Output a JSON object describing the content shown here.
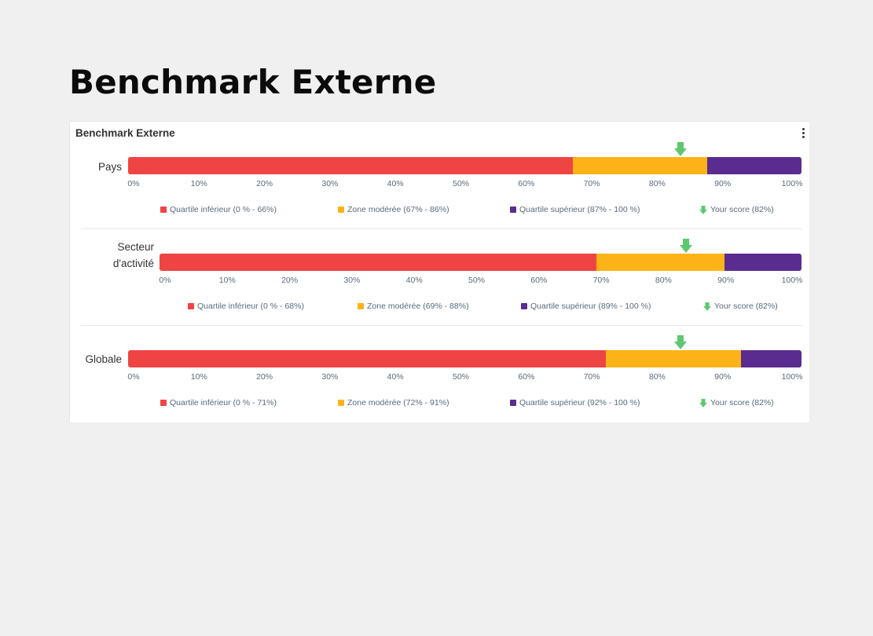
{
  "page": {
    "title": "Benchmark Externe"
  },
  "card": {
    "title": "Benchmark Externe",
    "menu_icon": "more-vertical-icon"
  },
  "colors": {
    "lower": "#ef4444",
    "moderate": "#fbb318",
    "upper": "#5b2c8f",
    "score": "#5cc870"
  },
  "chart_data": [
    {
      "type": "bar",
      "label": "Pays",
      "axis": {
        "ticks": [
          "0%",
          "10%",
          "20%",
          "30%",
          "40%",
          "50%",
          "60%",
          "70%",
          "80%",
          "90%",
          "100%"
        ],
        "range": [
          0,
          100
        ]
      },
      "segments": [
        {
          "key": "lower",
          "from": 0,
          "to": 66
        },
        {
          "key": "moderate",
          "from": 66,
          "to": 86
        },
        {
          "key": "upper",
          "from": 86,
          "to": 100
        }
      ],
      "score": 82,
      "legend": {
        "lower": "Quartile inférieur (0 % - 66%)",
        "moderate": "Zone modérée (67% - 86%)",
        "upper": "Quartile supérieur (87% - 100 %)",
        "score": "Your score (82%)"
      }
    },
    {
      "type": "bar",
      "label": "Secteur d'activité",
      "axis": {
        "ticks": [
          "0%",
          "10%",
          "20%",
          "30%",
          "40%",
          "50%",
          "60%",
          "70%",
          "80%",
          "90%",
          "100%"
        ],
        "range": [
          0,
          100
        ]
      },
      "segments": [
        {
          "key": "lower",
          "from": 0,
          "to": 68
        },
        {
          "key": "moderate",
          "from": 68,
          "to": 88
        },
        {
          "key": "upper",
          "from": 88,
          "to": 100
        }
      ],
      "score": 82,
      "legend": {
        "lower": "Quartile inférieur (0 % - 68%)",
        "moderate": "Zone modérée (69% - 88%)",
        "upper": "Quartile supérieur (89% - 100 %)",
        "score": "Your score (82%)"
      }
    },
    {
      "type": "bar",
      "label": "Globale",
      "axis": {
        "ticks": [
          "0%",
          "10%",
          "20%",
          "30%",
          "40%",
          "50%",
          "60%",
          "70%",
          "80%",
          "90%",
          "100%"
        ],
        "range": [
          0,
          100
        ]
      },
      "segments": [
        {
          "key": "lower",
          "from": 0,
          "to": 71
        },
        {
          "key": "moderate",
          "from": 71,
          "to": 91
        },
        {
          "key": "upper",
          "from": 91,
          "to": 100
        }
      ],
      "score": 82,
      "legend": {
        "lower": "Quartile inférieur (0 % - 71%)",
        "moderate": "Zone modérée (72% - 91%)",
        "upper": "Quartile supérieur (92% - 100 %)",
        "score": "Your score (82%)"
      }
    }
  ]
}
